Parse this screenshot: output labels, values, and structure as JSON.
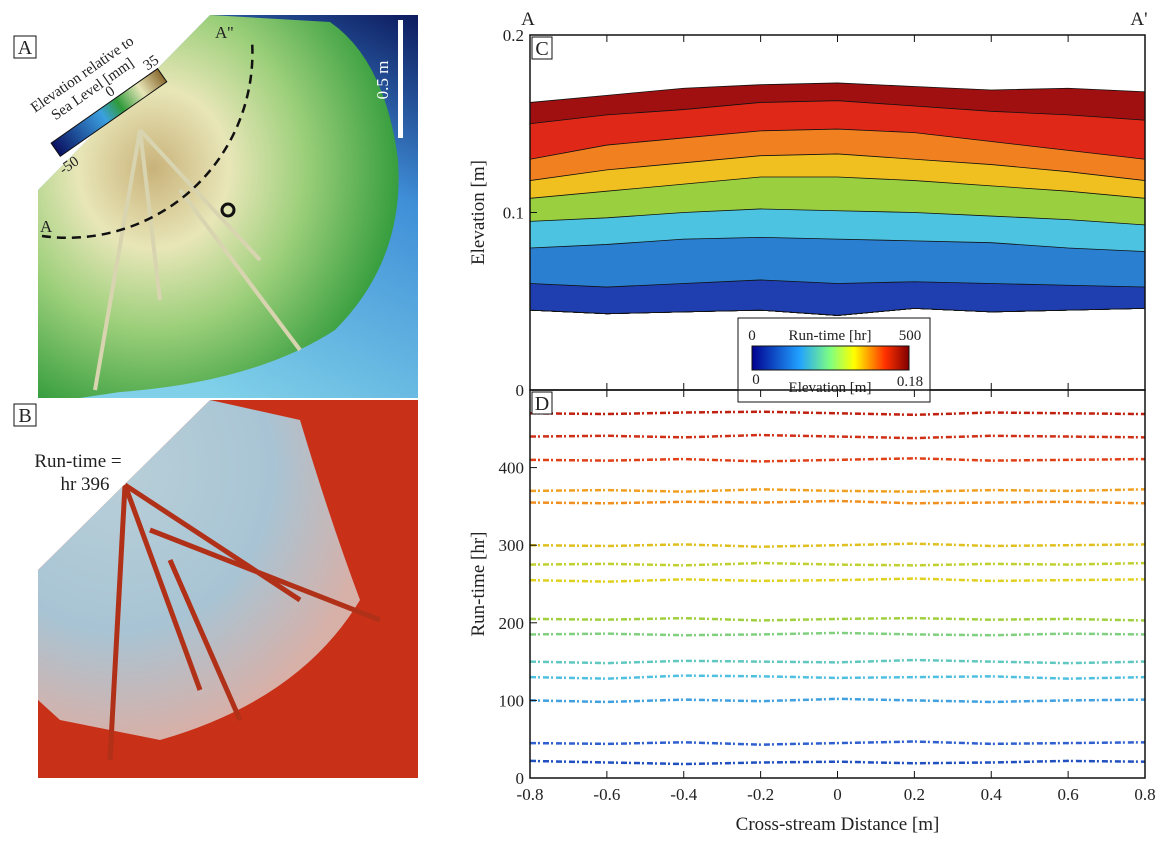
{
  "figure": {
    "panel_a": {
      "label": "A",
      "colorbar_title": [
        "Elevation relative to",
        "Sea Level [mm]"
      ],
      "colorbar_ticks": [
        -50,
        0,
        35
      ],
      "scale_bar": "0.5 m",
      "transect_start": "A",
      "transect_end": "A''"
    },
    "panel_b": {
      "label": "B",
      "annotation": [
        "Run-time =",
        "hr 396"
      ]
    }
  },
  "chart_data": [
    {
      "type": "area",
      "panel_label": "C",
      "corner_labels": [
        "A",
        "A'"
      ],
      "ylabel": "Elevation [m]",
      "x": [
        -0.8,
        -0.6,
        -0.4,
        -0.2,
        0,
        0.2,
        0.4,
        0.6,
        0.8
      ],
      "xlim": [
        -0.8,
        0.8
      ],
      "xticks": [
        -0.8,
        -0.6,
        -0.4,
        -0.2,
        0,
        0.2,
        0.4,
        0.6,
        0.8
      ],
      "ylim": [
        0,
        0.2
      ],
      "yticks": [
        0,
        0.1,
        0.2
      ],
      "colorbar": {
        "top_title": "Run-time [hr]",
        "top_ticks": [
          0,
          500
        ],
        "bottom_title": "Elevation [m]",
        "bottom_ticks": [
          0,
          0.18
        ]
      },
      "series": [
        {
          "color": "#1a237e",
          "values": [
            0.045,
            0.043,
            0.044,
            0.045,
            0.042,
            0.046,
            0.044,
            0.045,
            0.046
          ]
        },
        {
          "color": "#1f3fb0",
          "values": [
            0.06,
            0.058,
            0.06,
            0.062,
            0.06,
            0.061,
            0.06,
            0.059,
            0.058
          ]
        },
        {
          "color": "#2a7fd0",
          "values": [
            0.08,
            0.082,
            0.085,
            0.086,
            0.085,
            0.084,
            0.083,
            0.08,
            0.078
          ]
        },
        {
          "color": "#4cc3e0",
          "values": [
            0.095,
            0.097,
            0.1,
            0.102,
            0.101,
            0.1,
            0.098,
            0.096,
            0.093
          ]
        },
        {
          "color": "#9ad040",
          "values": [
            0.108,
            0.112,
            0.116,
            0.12,
            0.12,
            0.118,
            0.115,
            0.112,
            0.108
          ]
        },
        {
          "color": "#f0c020",
          "values": [
            0.118,
            0.124,
            0.128,
            0.132,
            0.133,
            0.13,
            0.127,
            0.123,
            0.118
          ]
        },
        {
          "color": "#f08020",
          "values": [
            0.13,
            0.138,
            0.142,
            0.146,
            0.147,
            0.145,
            0.14,
            0.135,
            0.13
          ]
        },
        {
          "color": "#e02818",
          "values": [
            0.15,
            0.155,
            0.158,
            0.162,
            0.163,
            0.16,
            0.157,
            0.155,
            0.152
          ]
        },
        {
          "color": "#a01010",
          "values": [
            0.162,
            0.166,
            0.17,
            0.172,
            0.173,
            0.171,
            0.169,
            0.17,
            0.168
          ]
        }
      ]
    },
    {
      "type": "line",
      "panel_label": "D",
      "ylabel": "Run-time [hr]",
      "xlabel": "Cross-stream Distance [m]",
      "x": [
        -0.8,
        -0.6,
        -0.4,
        -0.2,
        0,
        0.2,
        0.4,
        0.6,
        0.8
      ],
      "xlim": [
        -0.8,
        0.8
      ],
      "xticks": [
        -0.8,
        -0.6,
        -0.4,
        -0.2,
        0,
        0.2,
        0.4,
        0.6,
        0.8
      ],
      "ylim": [
        0,
        500
      ],
      "yticks": [
        0,
        100,
        200,
        300,
        400
      ],
      "series": [
        {
          "color": "#2050c0",
          "values": [
            22,
            20,
            18,
            20,
            21,
            19,
            20,
            22,
            21
          ]
        },
        {
          "color": "#3060d0",
          "values": [
            45,
            44,
            46,
            43,
            45,
            47,
            44,
            45,
            46
          ]
        },
        {
          "color": "#40a0e0",
          "values": [
            100,
            98,
            101,
            99,
            102,
            100,
            98,
            100,
            101
          ]
        },
        {
          "color": "#50c0e0",
          "values": [
            130,
            128,
            132,
            131,
            129,
            130,
            131,
            128,
            130
          ]
        },
        {
          "color": "#60c8c0",
          "values": [
            150,
            148,
            151,
            150,
            149,
            152,
            150,
            148,
            150
          ]
        },
        {
          "color": "#80d080",
          "values": [
            185,
            186,
            184,
            185,
            187,
            185,
            184,
            186,
            185
          ]
        },
        {
          "color": "#a0d040",
          "values": [
            205,
            204,
            206,
            203,
            205,
            206,
            204,
            205,
            203
          ]
        },
        {
          "color": "#e0d020",
          "values": [
            255,
            253,
            256,
            254,
            255,
            257,
            254,
            255,
            256
          ]
        },
        {
          "color": "#c0d030",
          "values": [
            275,
            276,
            274,
            277,
            275,
            274,
            276,
            275,
            277
          ]
        },
        {
          "color": "#e0c020",
          "values": [
            300,
            299,
            301,
            298,
            300,
            302,
            299,
            300,
            301
          ]
        },
        {
          "color": "#f09020",
          "values": [
            355,
            354,
            356,
            355,
            357,
            354,
            355,
            356,
            354
          ]
        },
        {
          "color": "#f0a020",
          "values": [
            370,
            371,
            369,
            372,
            370,
            369,
            371,
            370,
            372
          ]
        },
        {
          "color": "#e04018",
          "values": [
            410,
            409,
            411,
            408,
            410,
            412,
            409,
            410,
            411
          ]
        },
        {
          "color": "#d03018",
          "values": [
            440,
            441,
            439,
            442,
            440,
            438,
            441,
            440,
            439
          ]
        },
        {
          "color": "#c02010",
          "values": [
            470,
            469,
            471,
            472,
            470,
            468,
            471,
            470,
            469
          ]
        }
      ]
    }
  ]
}
